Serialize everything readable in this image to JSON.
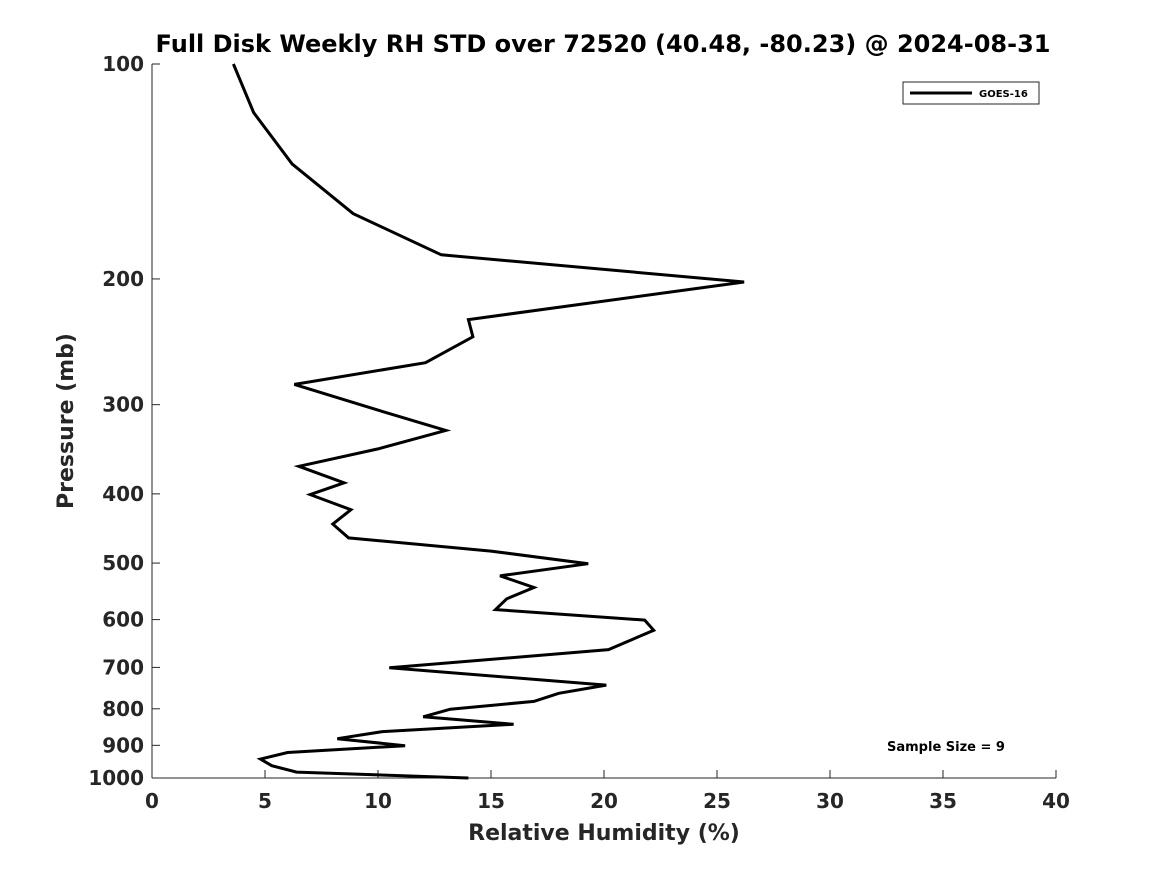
{
  "chart_data": {
    "type": "line",
    "title": "Full Disk Weekly RH STD over 72520 (40.48, -80.23) @ 2024-08-31",
    "xlabel": "Relative Humidity (%)",
    "ylabel": "Pressure (mb)",
    "xlim": [
      0,
      40
    ],
    "ylim": [
      100,
      1000
    ],
    "yscale": "log",
    "y_reversed": true,
    "xticks": [
      0,
      5,
      10,
      15,
      20,
      25,
      30,
      35,
      40
    ],
    "yticks": [
      100,
      200,
      300,
      400,
      500,
      600,
      700,
      800,
      900,
      1000
    ],
    "grid": false,
    "legend_position": "top-right",
    "series": [
      {
        "name": "GOES-16",
        "color": "#000000",
        "x": [
          3.6,
          4.5,
          6.2,
          8.9,
          12.8,
          26.2,
          14.0,
          14.2,
          12.1,
          6.3,
          10.1,
          13.0,
          10.0,
          6.5,
          8.5,
          7.0,
          8.8,
          8.0,
          8.7,
          15.0,
          19.3,
          15.4,
          16.9,
          15.7,
          15.2,
          21.8,
          22.2,
          20.2,
          10.5,
          20.1,
          18.0,
          16.9,
          13.2,
          12.0,
          16.0,
          10.2,
          8.2,
          11.2,
          6.0,
          4.8,
          5.3,
          6.4,
          14.0
        ],
        "y": [
          100,
          117,
          138,
          162,
          185,
          202,
          228,
          241,
          262,
          281,
          306,
          326,
          346,
          366,
          386,
          401,
          421,
          441,
          461,
          481,
          501,
          521,
          541,
          561,
          581,
          601,
          621,
          661,
          701,
          741,
          761,
          781,
          801,
          821,
          841,
          861,
          881,
          901,
          921,
          941,
          961,
          981,
          1001
        ]
      }
    ],
    "annotations": [
      "Sample Size = 9"
    ]
  }
}
